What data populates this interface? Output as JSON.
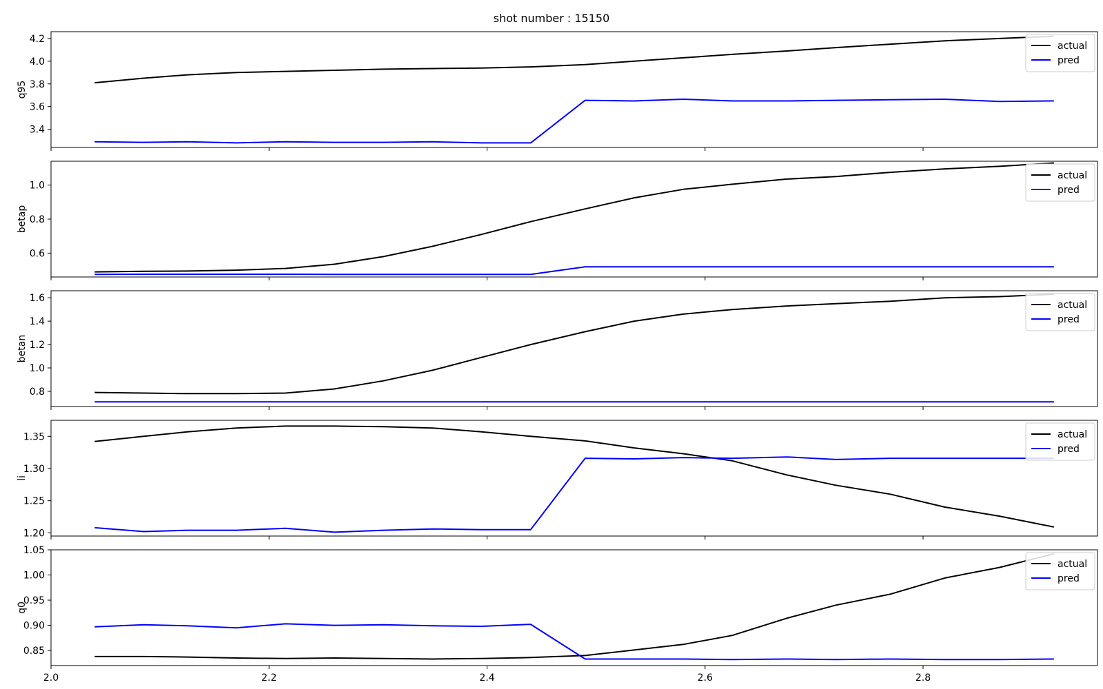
{
  "figure": {
    "title": "shot number : 15150"
  },
  "chart_data": [
    {
      "type": "line",
      "ylabel": "q95",
      "xlim": [
        2.0,
        2.96
      ],
      "ylim": [
        3.24,
        4.26
      ],
      "yticks": [
        "3.4",
        "3.6",
        "3.8",
        "4.0",
        "4.2"
      ],
      "xticks": [
        "2.0",
        "2.2",
        "2.4",
        "2.6",
        "2.8"
      ],
      "show_xticklabels": false,
      "legend": "upper right",
      "x": [
        2.04,
        2.085,
        2.125,
        2.17,
        2.215,
        2.26,
        2.305,
        2.35,
        2.395,
        2.44,
        2.49,
        2.535,
        2.58,
        2.625,
        2.675,
        2.72,
        2.77,
        2.82,
        2.87,
        2.92
      ],
      "series": [
        {
          "name": "actual",
          "color": "#000000",
          "values": [
            3.81,
            3.85,
            3.88,
            3.9,
            3.91,
            3.92,
            3.93,
            3.935,
            3.94,
            3.95,
            3.97,
            4.0,
            4.03,
            4.06,
            4.09,
            4.12,
            4.15,
            4.18,
            4.2,
            4.22
          ]
        },
        {
          "name": "pred",
          "color": "#0000ff",
          "values": [
            3.29,
            3.285,
            3.29,
            3.28,
            3.29,
            3.285,
            3.285,
            3.29,
            3.28,
            3.28,
            3.655,
            3.65,
            3.665,
            3.65,
            3.65,
            3.655,
            3.66,
            3.665,
            3.645,
            3.65
          ]
        }
      ]
    },
    {
      "type": "line",
      "ylabel": "betap",
      "xlim": [
        2.0,
        2.96
      ],
      "ylim": [
        0.46,
        1.14
      ],
      "yticks": [
        "0.6",
        "0.8",
        "1.0"
      ],
      "xticks": [
        "2.0",
        "2.2",
        "2.4",
        "2.6",
        "2.8"
      ],
      "show_xticklabels": false,
      "legend": "upper right",
      "x": [
        2.04,
        2.085,
        2.125,
        2.17,
        2.215,
        2.26,
        2.305,
        2.35,
        2.395,
        2.44,
        2.49,
        2.535,
        2.58,
        2.625,
        2.675,
        2.72,
        2.77,
        2.82,
        2.87,
        2.92
      ],
      "series": [
        {
          "name": "actual",
          "color": "#000000",
          "values": [
            0.49,
            0.493,
            0.495,
            0.5,
            0.51,
            0.535,
            0.58,
            0.64,
            0.71,
            0.785,
            0.86,
            0.925,
            0.975,
            1.005,
            1.035,
            1.05,
            1.075,
            1.095,
            1.11,
            1.13
          ]
        },
        {
          "name": "pred",
          "color": "#0000ff",
          "values": [
            0.475,
            0.476,
            0.476,
            0.476,
            0.476,
            0.475,
            0.475,
            0.475,
            0.475,
            0.475,
            0.52,
            0.52,
            0.52,
            0.52,
            0.52,
            0.52,
            0.52,
            0.52,
            0.52,
            0.52
          ]
        }
      ]
    },
    {
      "type": "line",
      "ylabel": "betan",
      "xlim": [
        2.0,
        2.96
      ],
      "ylim": [
        0.67,
        1.66
      ],
      "yticks": [
        "0.8",
        "1.0",
        "1.2",
        "1.4",
        "1.6"
      ],
      "xticks": [
        "2.0",
        "2.2",
        "2.4",
        "2.6",
        "2.8"
      ],
      "show_xticklabels": false,
      "legend": "upper right",
      "x": [
        2.04,
        2.085,
        2.125,
        2.17,
        2.215,
        2.26,
        2.305,
        2.35,
        2.395,
        2.44,
        2.49,
        2.535,
        2.58,
        2.625,
        2.675,
        2.72,
        2.77,
        2.82,
        2.87,
        2.92
      ],
      "series": [
        {
          "name": "actual",
          "color": "#000000",
          "values": [
            0.79,
            0.785,
            0.78,
            0.78,
            0.785,
            0.82,
            0.89,
            0.98,
            1.09,
            1.2,
            1.31,
            1.4,
            1.46,
            1.5,
            1.53,
            1.55,
            1.57,
            1.6,
            1.61,
            1.63
          ]
        },
        {
          "name": "pred",
          "color": "#0000ff",
          "values": [
            0.71,
            0.71,
            0.71,
            0.71,
            0.71,
            0.71,
            0.71,
            0.71,
            0.71,
            0.71,
            0.71,
            0.71,
            0.71,
            0.71,
            0.71,
            0.71,
            0.71,
            0.71,
            0.71,
            0.71
          ]
        }
      ]
    },
    {
      "type": "line",
      "ylabel": "li",
      "xlim": [
        2.0,
        2.96
      ],
      "ylim": [
        1.195,
        1.375
      ],
      "yticks": [
        "1.20",
        "1.25",
        "1.30",
        "1.35"
      ],
      "xticks": [
        "2.0",
        "2.2",
        "2.4",
        "2.6",
        "2.8"
      ],
      "show_xticklabels": false,
      "legend": "upper right",
      "x": [
        2.04,
        2.085,
        2.125,
        2.17,
        2.215,
        2.26,
        2.305,
        2.35,
        2.395,
        2.44,
        2.49,
        2.535,
        2.58,
        2.625,
        2.675,
        2.72,
        2.77,
        2.82,
        2.87,
        2.92
      ],
      "series": [
        {
          "name": "actual",
          "color": "#000000",
          "values": [
            1.342,
            1.35,
            1.357,
            1.363,
            1.366,
            1.366,
            1.365,
            1.363,
            1.357,
            1.35,
            1.343,
            1.332,
            1.323,
            1.312,
            1.29,
            1.274,
            1.26,
            1.24,
            1.226,
            1.209
          ]
        },
        {
          "name": "pred",
          "color": "#0000ff",
          "values": [
            1.208,
            1.202,
            1.204,
            1.204,
            1.207,
            1.201,
            1.204,
            1.206,
            1.205,
            1.205,
            1.316,
            1.315,
            1.317,
            1.316,
            1.318,
            1.314,
            1.316,
            1.316,
            1.316,
            1.316
          ]
        }
      ]
    },
    {
      "type": "line",
      "ylabel": "q0",
      "xlim": [
        2.0,
        2.96
      ],
      "ylim": [
        0.82,
        1.05
      ],
      "yticks": [
        "0.85",
        "0.90",
        "0.95",
        "1.00",
        "1.05"
      ],
      "xticks": [
        "2.0",
        "2.2",
        "2.4",
        "2.6",
        "2.8"
      ],
      "show_xticklabels": true,
      "legend": "upper right",
      "x": [
        2.04,
        2.085,
        2.125,
        2.17,
        2.215,
        2.26,
        2.305,
        2.35,
        2.395,
        2.44,
        2.49,
        2.535,
        2.58,
        2.625,
        2.675,
        2.72,
        2.77,
        2.82,
        2.87,
        2.92
      ],
      "series": [
        {
          "name": "actual",
          "color": "#000000",
          "values": [
            0.838,
            0.838,
            0.837,
            0.835,
            0.834,
            0.835,
            0.834,
            0.833,
            0.834,
            0.836,
            0.84,
            0.851,
            0.862,
            0.88,
            0.914,
            0.94,
            0.962,
            0.994,
            1.015,
            1.042
          ]
        },
        {
          "name": "pred",
          "color": "#0000ff",
          "values": [
            0.897,
            0.901,
            0.899,
            0.895,
            0.903,
            0.9,
            0.901,
            0.899,
            0.898,
            0.902,
            0.833,
            0.833,
            0.833,
            0.832,
            0.833,
            0.832,
            0.833,
            0.832,
            0.832,
            0.833
          ]
        }
      ]
    }
  ]
}
